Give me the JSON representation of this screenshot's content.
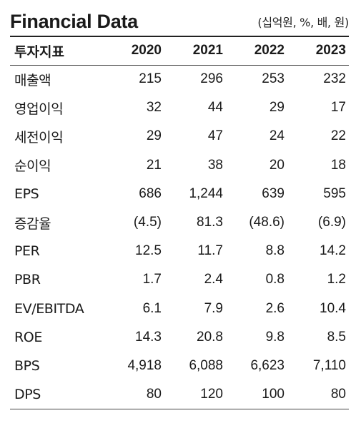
{
  "header": {
    "title": "Financial Data",
    "unit": "(십억원, %, 배, 원)"
  },
  "table": {
    "columns": [
      "투자지표",
      "2020",
      "2021",
      "2022",
      "2023"
    ],
    "rows": [
      {
        "label": "매출액",
        "values": [
          "215",
          "296",
          "253",
          "232"
        ]
      },
      {
        "label": "영업이익",
        "values": [
          "32",
          "44",
          "29",
          "17"
        ]
      },
      {
        "label": "세전이익",
        "values": [
          "29",
          "47",
          "24",
          "22"
        ]
      },
      {
        "label": "순이익",
        "values": [
          "21",
          "38",
          "20",
          "18"
        ]
      },
      {
        "label": "EPS",
        "values": [
          "686",
          "1,244",
          "639",
          "595"
        ]
      },
      {
        "label": "증감율",
        "values": [
          "(4.5)",
          "81.3",
          "(48.6)",
          "(6.9)"
        ]
      },
      {
        "label": "PER",
        "values": [
          "12.5",
          "11.7",
          "8.8",
          "14.2"
        ]
      },
      {
        "label": "PBR",
        "values": [
          "1.7",
          "2.4",
          "0.8",
          "1.2"
        ]
      },
      {
        "label": "EV/EBITDA",
        "values": [
          "6.1",
          "7.9",
          "2.6",
          "10.4"
        ]
      },
      {
        "label": "ROE",
        "values": [
          "14.3",
          "20.8",
          "9.8",
          "8.5"
        ]
      },
      {
        "label": "BPS",
        "values": [
          "4,918",
          "6,088",
          "6,623",
          "7,110"
        ]
      },
      {
        "label": "DPS",
        "values": [
          "80",
          "120",
          "100",
          "80"
        ]
      }
    ]
  }
}
